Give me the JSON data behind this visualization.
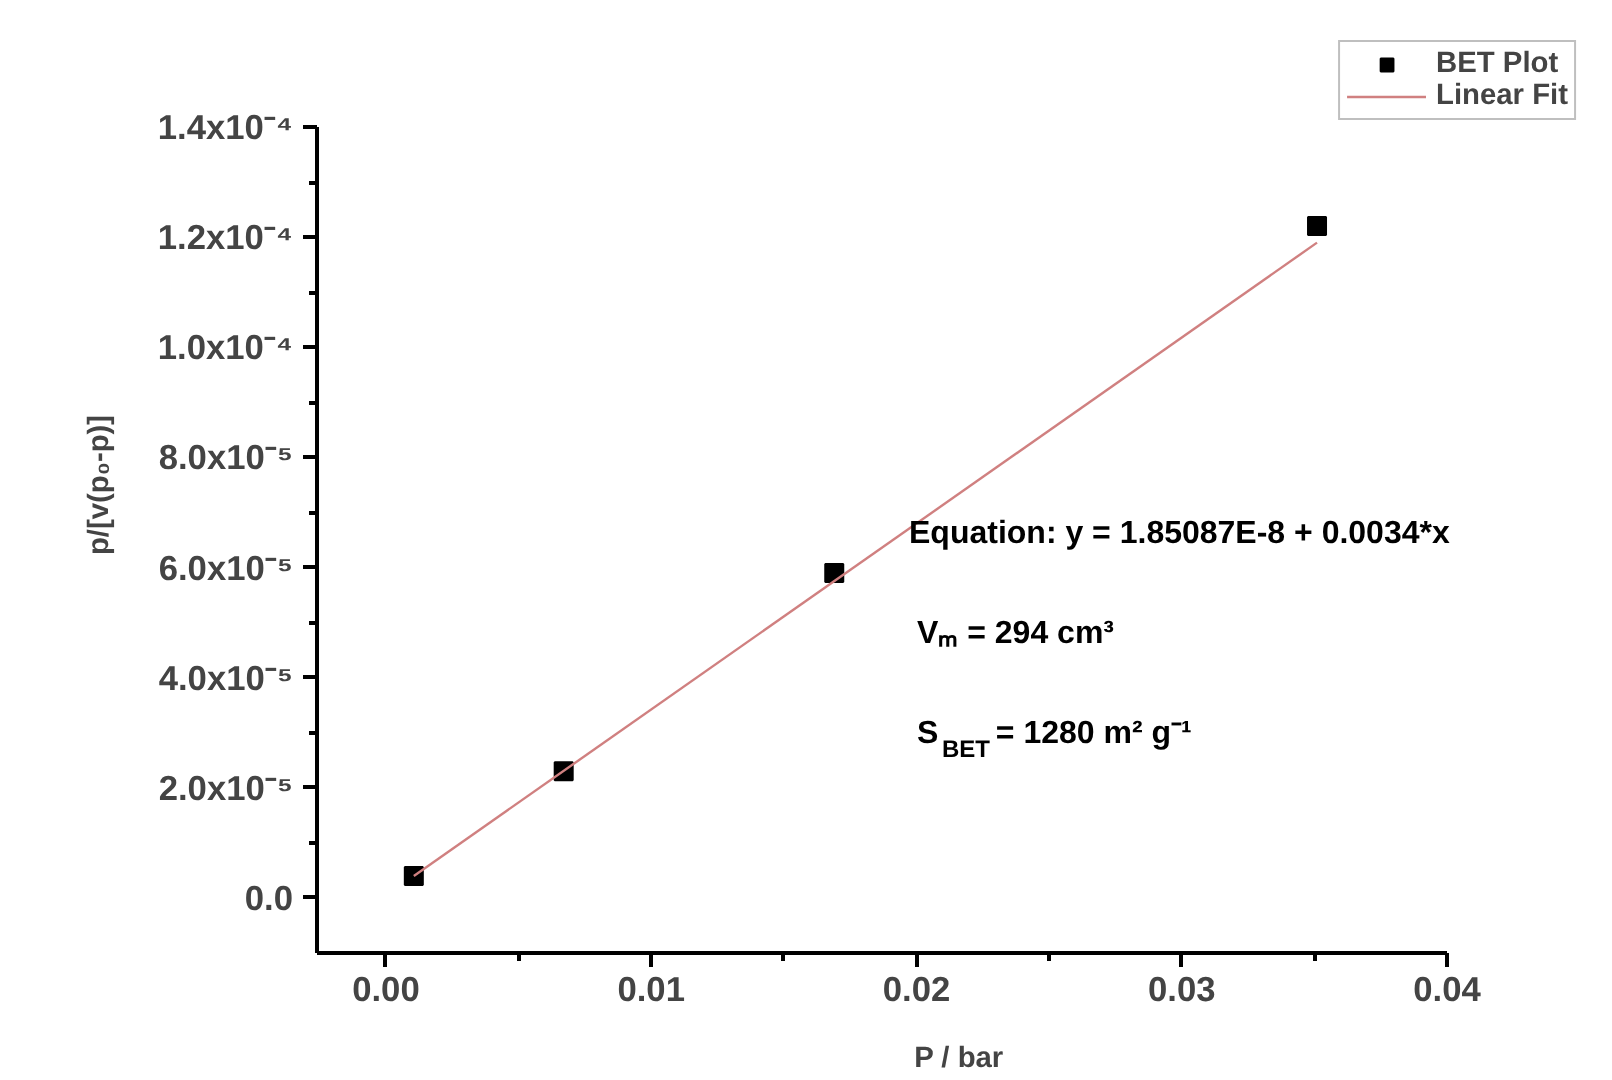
{
  "chart_data": {
    "type": "scatter",
    "xlabel": "P / bar",
    "ylabel": "p/[v(p₀-p)]",
    "x": [
      0.00105,
      0.0067,
      0.0169,
      0.0351
    ],
    "series": [
      {
        "name": "BET Plot",
        "color": "#000000",
        "marker": "square",
        "values": [
          4e-06,
          2.3e-05,
          5.9e-05,
          0.000122
        ]
      },
      {
        "name": "Linear Fit",
        "type": "line",
        "color": "#d08080",
        "line_style": "solid",
        "x": [
          0.00105,
          0.0351
        ],
        "values": [
          4e-06,
          0.000119
        ]
      }
    ],
    "xlim": [
      -0.0026,
      0.04
    ],
    "xticks": [
      {
        "value": 0,
        "label": "0.00"
      },
      {
        "value": 0.01,
        "label": "0.01"
      },
      {
        "value": 0.02,
        "label": "0.02"
      },
      {
        "value": 0.03,
        "label": "0.03"
      },
      {
        "value": 0.04,
        "label": "0.04"
      }
    ],
    "ylim": [
      -1e-05,
      0.00014
    ],
    "yticks": [
      {
        "value": 0,
        "label": "0.0"
      },
      {
        "value": 2e-05,
        "label": "2.0x10⁻⁵"
      },
      {
        "value": 4e-05,
        "label": "4.0x10⁻⁵"
      },
      {
        "value": 6e-05,
        "label": "6.0x10⁻⁵"
      },
      {
        "value": 8e-05,
        "label": "8.0x10⁻⁵"
      },
      {
        "value": 0.0001,
        "label": "1.0x10⁻⁴"
      },
      {
        "value": 0.00012,
        "label": "1.2x10⁻⁴"
      },
      {
        "value": 0.00014,
        "label": "1.4x10⁻⁴"
      }
    ],
    "annotations": [
      "Equation: y = 1.85087E-8 + 0.0034*x",
      "Vₘ = 294 cm³",
      "S$_{BET}$ = 1280 m² g⁻¹"
    ],
    "legend": "top right",
    "grid": false
  }
}
